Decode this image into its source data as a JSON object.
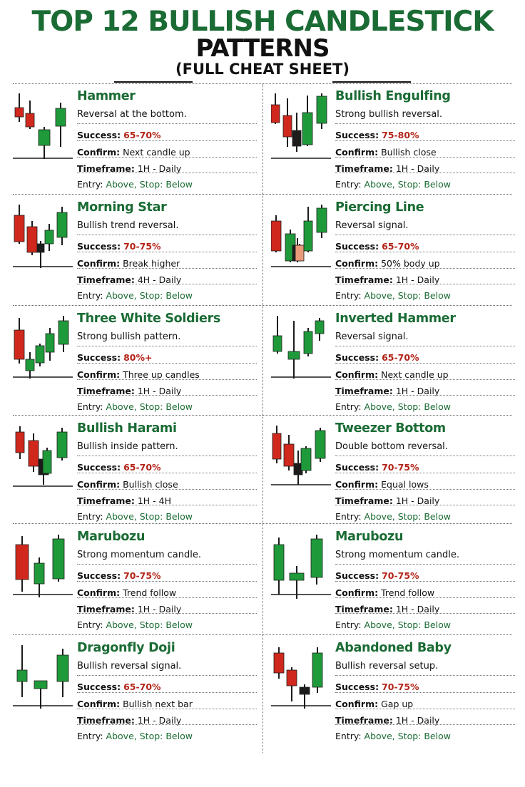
{
  "header": {
    "line1": "TOP 12 BULLISH CANDLESTICK",
    "line2": "PATTERNS",
    "line3": "(FULL CHEAT SHEET)"
  },
  "colors": {
    "green": "#1a6b34",
    "red": "#b32318",
    "candle_red": "#d0281c",
    "candle_green": "#1f9a3a",
    "dark": "#1c1c1c"
  },
  "labels": {
    "success": "Success:",
    "confirm": "Confirm:",
    "timeframe": "Timeframe:",
    "entry": "Entry:",
    "above": "Above,",
    "stop": "Stop:",
    "below": "Below"
  },
  "patterns": [
    {
      "name": "Hammer",
      "desc": "Reversal at the bottom.",
      "success": "65-70%",
      "confirm": "Next candle up",
      "timeframe": "1H - Daily"
    },
    {
      "name": "Bullish Engulfing",
      "desc": "Strong bullish reversal.",
      "success": "75-80%",
      "confirm": "Bullish close",
      "timeframe": "1H - Daily"
    },
    {
      "name": "Morning Star",
      "desc": "Bullish trend reversal.",
      "success": "70-75%",
      "confirm": "Break higher",
      "timeframe": "4H - Daily"
    },
    {
      "name": "Piercing Line",
      "desc": "Reversal signal.",
      "success": "65-70%",
      "confirm": "50% body up",
      "timeframe": "1H - Daily"
    },
    {
      "name": "Three White Soldiers",
      "desc": "Strong bullish pattern.",
      "success": "80%+",
      "confirm": "Three up candles",
      "timeframe": "1H - Daily"
    },
    {
      "name": "Inverted Hammer",
      "desc": "Reversal signal.",
      "success": "65-70%",
      "confirm": "Next candle up",
      "timeframe": "1H - Daily"
    },
    {
      "name": "Bullish Harami",
      "desc": "Bullish inside pattern.",
      "success": "65-70%",
      "confirm": "Bullish close",
      "timeframe": "1H - 4H"
    },
    {
      "name": "Tweezer Bottom",
      "desc": "Double bottom reversal.",
      "success": "70-75%",
      "confirm": "Equal lows",
      "timeframe": "1H - Daily"
    },
    {
      "name": "Marubozu",
      "desc": "Strong momentum candle.",
      "success": "70-75%",
      "confirm": "Trend follow",
      "timeframe": "1H - Daily"
    },
    {
      "name": "Marubozu",
      "desc": "Strong momentum candle.",
      "success": "70-75%",
      "confirm": "Trend follow",
      "timeframe": "1H - Daily"
    },
    {
      "name": "Dragonfly Doji",
      "desc": "Bullish reversal signal.",
      "success": "65-70%",
      "confirm": "Bullish next bar",
      "timeframe": "1H - Daily"
    },
    {
      "name": "Abandoned Baby",
      "desc": "Bullish reversal setup.",
      "success": "70-75%",
      "confirm": "Gap up",
      "timeframe": "1H - Daily"
    }
  ]
}
